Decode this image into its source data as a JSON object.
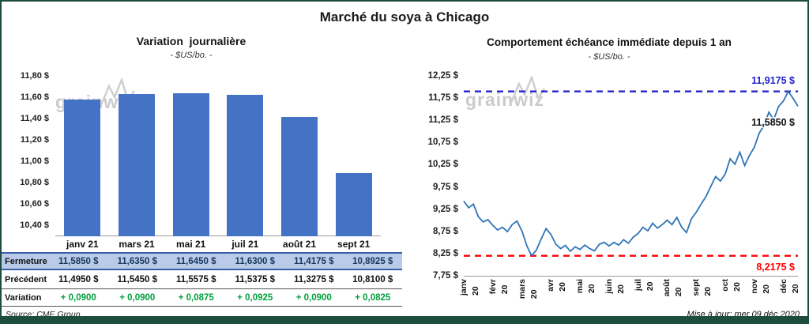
{
  "page_title": "Marché du soya à Chicago",
  "watermark": "grainwiz",
  "footer": {
    "source": "Source: CME Group",
    "updated": "Mise à jour: mer 09 déc 2020"
  },
  "colors": {
    "frame": "#1E4D40",
    "bar": "#4472C4",
    "price_line": "#2E74B5",
    "max_dash": "#2222CC",
    "min_dash": "#FF0000",
    "last_label_text": "#111111",
    "variation_green": "#00A03C",
    "fermeture_bg": "#B9CBE8",
    "fermeture_text": "#17365D"
  },
  "chart_data": [
    {
      "type": "bar",
      "title": "Variation  journalière",
      "subtitle": "- $US/bo. -",
      "categories": [
        "janv 21",
        "mars 21",
        "mai 21",
        "juil 21",
        "août 21",
        "sept 21"
      ],
      "values": [
        11.585,
        11.635,
        11.645,
        11.63,
        11.4175,
        10.8925
      ],
      "ylim": [
        10.3,
        11.85
      ],
      "yticks": [
        11.8,
        11.6,
        11.4,
        11.2,
        11.0,
        10.8,
        10.6,
        10.4
      ],
      "ytick_labels": [
        "11,80 $",
        "11,60 $",
        "11,40 $",
        "11,20 $",
        "11,00 $",
        "10,80 $",
        "10,60 $",
        "10,40 $"
      ],
      "legend": "none",
      "grid": false
    },
    {
      "type": "line",
      "title": "Comportement échéance immédiate depuis 1 an",
      "subtitle": "- $US/bo. -",
      "x_labels": [
        "janv 20",
        "févr 20",
        "mars 20",
        "avr 20",
        "mai 20",
        "juin 20",
        "juil 20",
        "août 20",
        "sept 20",
        "oct 20",
        "nov 20",
        "déc 20"
      ],
      "ylim": [
        7.75,
        12.25
      ],
      "yticks": [
        12.25,
        11.75,
        11.25,
        10.75,
        10.25,
        9.75,
        9.25,
        8.75,
        8.25,
        7.75
      ],
      "ytick_labels": [
        "12,25 $",
        "11,75 $",
        "11,25 $",
        "10,75 $",
        "10,25 $",
        "9,75 $",
        "9,25 $",
        "8,75 $",
        "8,25 $",
        "7,75 $"
      ],
      "series": [
        9.45,
        9.3,
        9.38,
        9.1,
        8.98,
        9.03,
        8.9,
        8.8,
        8.86,
        8.76,
        8.92,
        9.0,
        8.78,
        8.45,
        8.2175,
        8.35,
        8.6,
        8.83,
        8.7,
        8.48,
        8.38,
        8.45,
        8.32,
        8.42,
        8.36,
        8.46,
        8.38,
        8.33,
        8.48,
        8.52,
        8.44,
        8.52,
        8.46,
        8.58,
        8.5,
        8.64,
        8.72,
        8.86,
        8.78,
        8.95,
        8.84,
        8.92,
        9.02,
        8.92,
        9.08,
        8.86,
        8.74,
        9.05,
        9.2,
        9.38,
        9.55,
        9.78,
        10.0,
        9.9,
        10.06,
        10.4,
        10.28,
        10.55,
        10.25,
        10.48,
        10.66,
        10.98,
        11.15,
        11.45,
        11.28,
        11.58,
        11.7,
        11.9175,
        11.76,
        11.585
      ],
      "max_line": {
        "value": 11.9175,
        "label": "11,9175 $"
      },
      "min_line": {
        "value": 8.2175,
        "label": "8,2175 $"
      },
      "last_point": {
        "value": 11.585,
        "label": "11,5850 $"
      },
      "legend": "none",
      "grid": false
    }
  ],
  "table": {
    "rows": [
      {
        "label": "Fermeture",
        "values": [
          "11,5850 $",
          "11,6350 $",
          "11,6450 $",
          "11,6300 $",
          "11,4175 $",
          "10,8925 $"
        ]
      },
      {
        "label": "Précédent",
        "values": [
          "11,4950 $",
          "11,5450 $",
          "11,5575 $",
          "11,5375 $",
          "11,3275 $",
          "10,8100 $"
        ]
      },
      {
        "label": "Variation",
        "values": [
          "+ 0,0900",
          "+ 0,0900",
          "+ 0,0875",
          "+ 0,0925",
          "+ 0,0900",
          "+ 0,0825"
        ]
      }
    ]
  }
}
